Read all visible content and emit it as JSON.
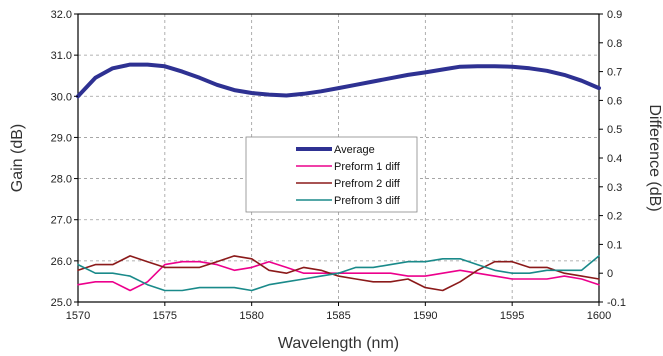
{
  "chart_data": {
    "type": "line",
    "xlabel": "Wavelength (nm)",
    "ylabel": "Gain (dB)",
    "y2label": "Difference (dB)",
    "xlim": [
      1570,
      1600
    ],
    "ylim": [
      25.0,
      32.0
    ],
    "y2lim": [
      -0.1,
      0.9
    ],
    "xticks": [
      "1570",
      "1575",
      "1580",
      "1585",
      "1590",
      "1595",
      "1600"
    ],
    "yticks": [
      "25.0",
      "26.0",
      "27.0",
      "28.0",
      "29.0",
      "30.0",
      "31.0",
      "32.0"
    ],
    "y2ticks": [
      "-0.1",
      "0",
      "0.1",
      "0.2",
      "0.3",
      "0.4",
      "0.5",
      "0.6",
      "0.7",
      "0.8",
      "0.9"
    ],
    "grid": true,
    "legend_position": "center",
    "x": [
      1570,
      1571,
      1572,
      1573,
      1574,
      1575,
      1576,
      1577,
      1578,
      1579,
      1580,
      1581,
      1582,
      1583,
      1584,
      1585,
      1586,
      1587,
      1588,
      1589,
      1590,
      1591,
      1592,
      1593,
      1594,
      1595,
      1596,
      1597,
      1598,
      1599,
      1600
    ],
    "series": [
      {
        "name": "Average",
        "axis": "left",
        "color": "#2e3192",
        "values": [
          30.0,
          30.45,
          30.68,
          30.77,
          30.77,
          30.73,
          30.6,
          30.45,
          30.28,
          30.15,
          30.08,
          30.04,
          30.02,
          30.06,
          30.12,
          30.2,
          30.28,
          30.36,
          30.44,
          30.52,
          30.58,
          30.65,
          30.72,
          30.73,
          30.73,
          30.72,
          30.68,
          30.62,
          30.52,
          30.38,
          30.2
        ]
      },
      {
        "name": "Preform 1 diff",
        "axis": "right",
        "color": "#ec008c",
        "values": [
          -0.04,
          -0.03,
          -0.03,
          -0.06,
          -0.03,
          0.03,
          0.04,
          0.04,
          0.03,
          0.01,
          0.02,
          0.04,
          0.02,
          0.0,
          0.0,
          0.0,
          0.0,
          0.0,
          0.0,
          -0.01,
          -0.01,
          0.0,
          0.01,
          0.0,
          -0.01,
          -0.02,
          -0.02,
          -0.02,
          -0.01,
          -0.02,
          -0.04
        ]
      },
      {
        "name": "Prefrom 2 diff",
        "axis": "right",
        "color": "#8b1a1a",
        "values": [
          0.01,
          0.03,
          0.03,
          0.06,
          0.04,
          0.02,
          0.02,
          0.02,
          0.04,
          0.06,
          0.05,
          0.01,
          0.0,
          0.02,
          0.01,
          -0.01,
          -0.02,
          -0.03,
          -0.03,
          -0.02,
          -0.05,
          -0.06,
          -0.03,
          0.01,
          0.04,
          0.04,
          0.02,
          0.02,
          0.0,
          -0.01,
          -0.02
        ]
      },
      {
        "name": "Prefrom 3 diff",
        "axis": "right",
        "color": "#1a8a8a",
        "values": [
          0.03,
          0.0,
          0.0,
          -0.01,
          -0.04,
          -0.06,
          -0.06,
          -0.05,
          -0.05,
          -0.05,
          -0.06,
          -0.04,
          -0.03,
          -0.02,
          -0.01,
          0.0,
          0.02,
          0.02,
          0.03,
          0.04,
          0.04,
          0.05,
          0.05,
          0.03,
          0.01,
          0.0,
          0.0,
          0.01,
          0.01,
          0.01,
          0.06
        ]
      }
    ]
  }
}
